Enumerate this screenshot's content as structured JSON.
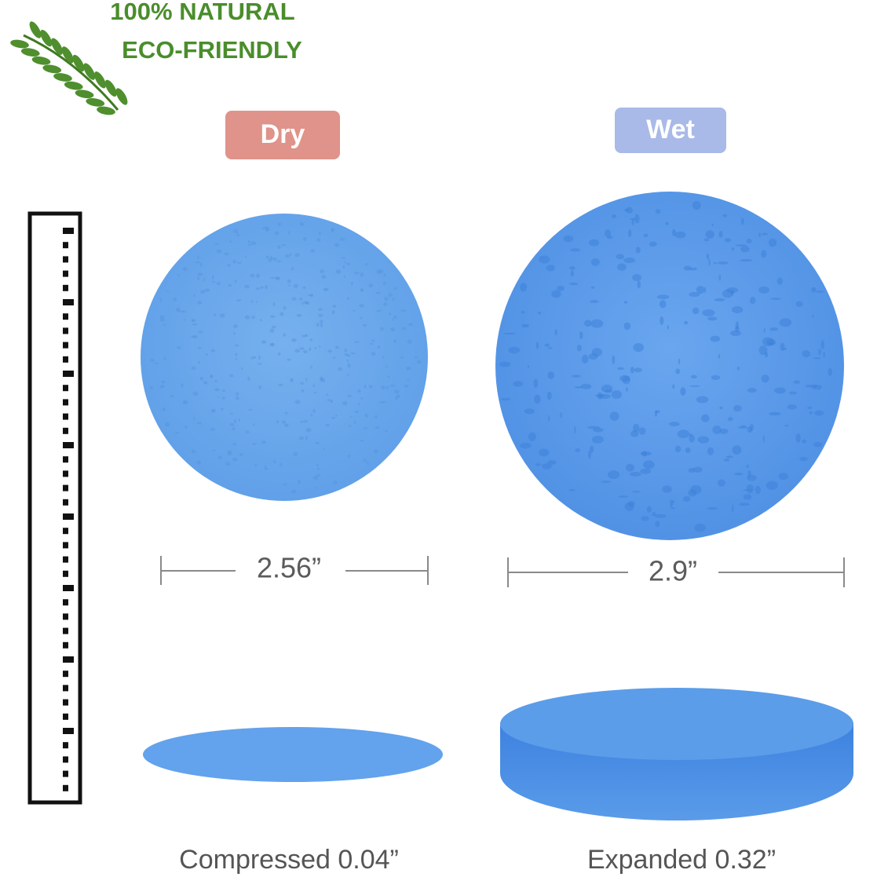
{
  "badge": {
    "line1": "100% NATURAL",
    "line2": "ECO-FRIENDLY"
  },
  "states": {
    "dry": "Dry",
    "wet": "Wet"
  },
  "diameters": {
    "dry": "2.56”",
    "wet": "2.9”"
  },
  "thickness": {
    "dry": "Compressed 0.04”",
    "wet": "Expanded 0.32”"
  }
}
